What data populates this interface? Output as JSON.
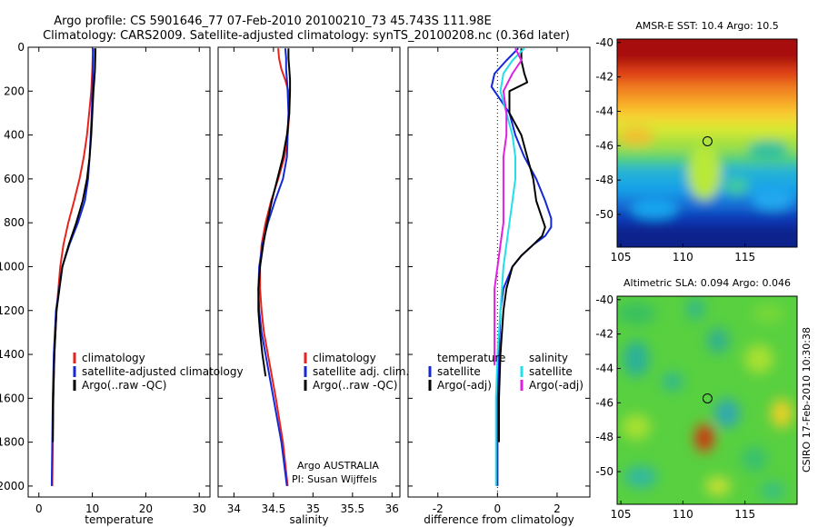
{
  "title_lines": [
    "Argo profile: CS 5901646_77 07-Feb-2010 20100210_73 45.743S 111.98E",
    "Climatology: CARS2009. Satellite-adjusted climatology: synTS_20100208.nc (0.36d later)"
  ],
  "side_stamp": "CSIRO 17-Feb-2010 10:30:38",
  "colors": {
    "red": "#e8221c",
    "blue": "#1428d8",
    "black": "#000000",
    "cyan": "#22e0e8",
    "magenta": "#e020e0"
  },
  "chart_data": [
    {
      "type": "line",
      "xlabel": "temperature",
      "ylabel": "",
      "xlim": [
        -2,
        32
      ],
      "ylim": [
        2050,
        0
      ],
      "xticks": [
        0,
        10,
        20,
        30
      ],
      "yticks": [
        0,
        200,
        400,
        600,
        800,
        1000,
        1200,
        1400,
        1600,
        1800,
        2000
      ],
      "legend": {
        "placement": "lower-center",
        "entries": [
          {
            "label": "climatology",
            "color": "#e8221c"
          },
          {
            "label": "satellite-adjusted climatology",
            "color": "#1428d8"
          },
          {
            "label": "Argo(..raw -QC)",
            "color": "#000000"
          }
        ]
      },
      "series": [
        {
          "color": "#e8221c",
          "depth": [
            5,
            100,
            200,
            300,
            400,
            500,
            600,
            700,
            800,
            900,
            1000,
            1200,
            1400,
            1600,
            1800,
            2000
          ],
          "values": [
            10.1,
            10.0,
            9.8,
            9.4,
            9.0,
            8.4,
            7.6,
            6.6,
            5.5,
            4.6,
            4.0,
            3.3,
            2.9,
            2.7,
            2.6,
            2.5
          ]
        },
        {
          "color": "#1428d8",
          "depth": [
            5,
            100,
            200,
            300,
            400,
            500,
            600,
            700,
            800,
            900,
            1000,
            1200,
            1400,
            1600,
            1800,
            2000
          ],
          "values": [
            10.2,
            10.1,
            10.0,
            9.9,
            9.7,
            9.5,
            9.2,
            8.6,
            7.3,
            5.7,
            4.4,
            3.2,
            2.8,
            2.6,
            2.5,
            2.4
          ]
        },
        {
          "color": "#000000",
          "depth": [
            5,
            100,
            140,
            200,
            300,
            400,
            500,
            600,
            700,
            800,
            900,
            1000,
            1200,
            1400,
            1600,
            1800
          ],
          "values": [
            10.6,
            10.5,
            10.4,
            10.2,
            10.0,
            9.8,
            9.5,
            9.0,
            8.2,
            7.0,
            5.6,
            4.4,
            3.3,
            2.9,
            2.7,
            2.6
          ]
        }
      ]
    },
    {
      "type": "line",
      "xlabel": "salinity",
      "ylabel": "",
      "xlim": [
        33.8,
        36.1
      ],
      "ylim": [
        2050,
        0
      ],
      "xticks": [
        34,
        34.5,
        35,
        35.5,
        36
      ],
      "legend": {
        "placement": "lower-center",
        "entries": [
          {
            "label": "climatology",
            "color": "#e8221c"
          },
          {
            "label": "satellite adj. clim.",
            "color": "#1428d8"
          },
          {
            "label": "Argo(..raw -QC)",
            "color": "#000000"
          }
        ]
      },
      "annotation": [
        "Argo AUSTRALIA",
        "PI: Susan Wijffels"
      ],
      "series": [
        {
          "color": "#e8221c",
          "depth": [
            5,
            50,
            100,
            150,
            200,
            300,
            400,
            500,
            600,
            700,
            800,
            900,
            1000,
            1100,
            1200,
            1300,
            1400,
            1600,
            1800,
            2000
          ],
          "values": [
            34.56,
            34.57,
            34.6,
            34.65,
            34.69,
            34.7,
            34.68,
            34.64,
            34.56,
            34.47,
            34.4,
            34.35,
            34.33,
            34.33,
            34.35,
            34.38,
            34.43,
            34.53,
            34.62,
            34.68
          ]
        },
        {
          "color": "#1428d8",
          "depth": [
            5,
            50,
            100,
            150,
            200,
            300,
            400,
            500,
            600,
            700,
            800,
            900,
            1000,
            1100,
            1200,
            1300,
            1400,
            1600,
            1800,
            2000
          ],
          "values": [
            34.65,
            34.66,
            34.66,
            34.67,
            34.68,
            34.69,
            34.68,
            34.67,
            34.62,
            34.52,
            34.43,
            34.36,
            34.32,
            34.31,
            34.32,
            34.35,
            34.4,
            34.5,
            34.6,
            34.67
          ]
        },
        {
          "color": "#000000",
          "depth": [
            5,
            50,
            100,
            150,
            200,
            300,
            400,
            500,
            600,
            700,
            800,
            900,
            1000,
            1100,
            1200,
            1300,
            1400,
            1500
          ],
          "values": [
            34.69,
            34.69,
            34.7,
            34.71,
            34.71,
            34.7,
            34.67,
            34.62,
            34.55,
            34.48,
            34.42,
            34.37,
            34.33,
            34.31,
            34.31,
            34.33,
            34.36,
            34.4
          ]
        }
      ]
    },
    {
      "type": "line",
      "xlabel": "difference from climatology",
      "ylabel": "",
      "xlim": [
        -3,
        3.1
      ],
      "ylim": [
        2050,
        0
      ],
      "xticks": [
        -2,
        0,
        2
      ],
      "legend": {
        "placement": "lower-center",
        "entries": [
          {
            "group": "temperature",
            "label": "satellite",
            "color": "#1428d8"
          },
          {
            "group": "temperature",
            "label": "Argo(-adj)",
            "color": "#000000"
          },
          {
            "group": "salinity",
            "label": "satellite",
            "color": "#22e0e8"
          },
          {
            "group": "salinity",
            "label": "Argo(-adj)",
            "color": "#e020e0"
          }
        ],
        "headers": [
          "temperature",
          "salinity"
        ]
      },
      "series": [
        {
          "color": "#1428d8",
          "depth": [
            5,
            60,
            120,
            180,
            220,
            300,
            400,
            500,
            600,
            700,
            780,
            820,
            860,
            900,
            950,
            1000,
            1100,
            1200,
            1400,
            1600,
            1800,
            2000
          ],
          "values": [
            0.7,
            0.3,
            -0.1,
            -0.2,
            0.0,
            0.4,
            0.6,
            0.9,
            1.3,
            1.6,
            1.8,
            1.8,
            1.6,
            1.2,
            0.8,
            0.5,
            0.2,
            0.1,
            0.05,
            0.0,
            0.0,
            0.0
          ]
        },
        {
          "color": "#000000",
          "depth": [
            5,
            60,
            120,
            160,
            200,
            300,
            400,
            500,
            600,
            700,
            780,
            820,
            860,
            900,
            950,
            1000,
            1100,
            1200,
            1400,
            1600,
            1800
          ],
          "values": [
            0.8,
            0.8,
            0.9,
            1.0,
            0.4,
            0.4,
            0.8,
            1.0,
            1.2,
            1.3,
            1.5,
            1.6,
            1.5,
            1.2,
            0.8,
            0.5,
            0.3,
            0.2,
            0.1,
            0.05,
            0.05
          ]
        },
        {
          "color": "#22e0e8",
          "depth": [
            5,
            60,
            120,
            200,
            300,
            400,
            500,
            600,
            700,
            800,
            900,
            1000,
            1200,
            1400,
            1600,
            1800,
            2000
          ],
          "values": [
            0.9,
            0.5,
            0.2,
            0.1,
            0.3,
            0.5,
            0.6,
            0.6,
            0.5,
            0.4,
            0.3,
            0.2,
            0.1,
            0.0,
            -0.05,
            -0.05,
            -0.05
          ]
        },
        {
          "color": "#e020e0",
          "depth": [
            5,
            60,
            120,
            200,
            300,
            400,
            500,
            600,
            700,
            800,
            900,
            1000,
            1100,
            1200,
            1300,
            1450
          ],
          "values": [
            0.6,
            0.8,
            0.5,
            0.2,
            0.3,
            0.3,
            0.2,
            0.2,
            0.2,
            0.2,
            0.1,
            0.0,
            -0.1,
            -0.1,
            -0.1,
            -0.1
          ]
        }
      ]
    },
    {
      "type": "heatmap",
      "title": "AMSR-E SST: 10.4 Argo: 10.5",
      "xlim": [
        104.7,
        119.2
      ],
      "ylim": [
        -51.9,
        -39.8
      ],
      "xticks": [
        105,
        110,
        115
      ],
      "yticks": [
        -40,
        -42,
        -44,
        -46,
        -48,
        -50
      ],
      "marker": {
        "lon": 111.98,
        "lat": -45.743
      }
    },
    {
      "type": "heatmap",
      "title": "Altimetric SLA: 0.094 Argo: 0.046",
      "xlim": [
        104.7,
        119.2
      ],
      "ylim": [
        -51.9,
        -39.8
      ],
      "xticks": [
        105,
        110,
        115
      ],
      "yticks": [
        -40,
        -42,
        -44,
        -46,
        -48,
        -50
      ],
      "marker": {
        "lon": 111.98,
        "lat": -45.743
      }
    }
  ]
}
